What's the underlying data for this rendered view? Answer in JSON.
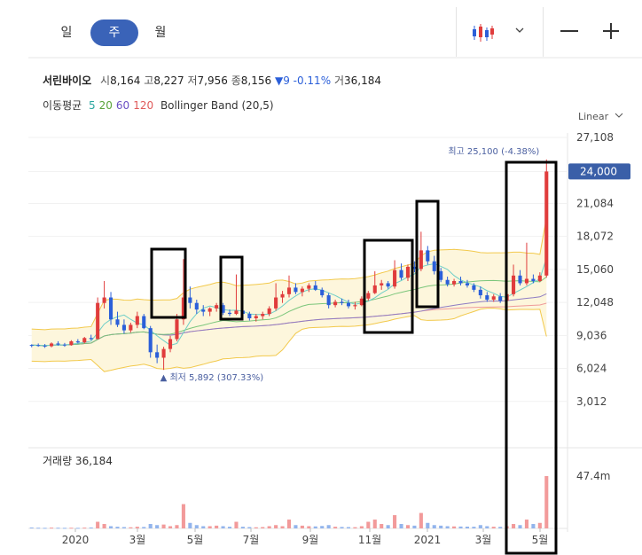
{
  "periods": [
    {
      "label": "일",
      "active": false
    },
    {
      "label": "주",
      "active": true
    },
    {
      "label": "월",
      "active": false
    }
  ],
  "toolbar": {
    "chart_type_icon": "candlestick-icon",
    "dropdown_icon": "chevron-down-icon",
    "zoom_out": "—",
    "zoom_in": "+"
  },
  "stock": {
    "name": "서린바이오",
    "open_label": "시",
    "open": "8,164",
    "high_label": "고",
    "high": "8,227",
    "low_label": "저",
    "low": "7,956",
    "close_label": "종",
    "close": "8,156",
    "change": "▼9 -0.11%",
    "volume_label": "거",
    "volume": "36,184"
  },
  "indicators": {
    "ma_label": "이동평균",
    "ma": [
      {
        "v": "5",
        "color": "#2aa6a0"
      },
      {
        "v": "20",
        "color": "#5aa33a"
      },
      {
        "v": "60",
        "color": "#6a4fc4"
      },
      {
        "v": "120",
        "color": "#e05a5a"
      }
    ],
    "bb": "Bollinger Band (20,5)"
  },
  "chart_data": {
    "type": "candlestick",
    "scale": "Linear",
    "yticks": [
      "27,108",
      "24,000",
      "21,084",
      "18,072",
      "15,060",
      "12,048",
      "9,036",
      "6,024",
      "3,012"
    ],
    "ylim": [
      0,
      27108
    ],
    "current_price": "24,000",
    "xticks": [
      "2020",
      "3월",
      "5월",
      "7월",
      "9월",
      "11월",
      "2021",
      "3월",
      "5월"
    ],
    "high_annotation": "최고 25,100 (-4.38%)",
    "low_annotation": "최저 5,892 (307.33%)",
    "candles": [
      [
        8164,
        8227,
        7956,
        8156
      ],
      [
        8156,
        8300,
        8000,
        8100
      ],
      [
        8100,
        8250,
        7900,
        8050
      ],
      [
        8050,
        8400,
        7950,
        8300
      ],
      [
        8300,
        8500,
        8100,
        8200
      ],
      [
        8200,
        8350,
        8000,
        8150
      ],
      [
        8150,
        8600,
        8100,
        8500
      ],
      [
        8500,
        8700,
        8300,
        8400
      ],
      [
        8400,
        8900,
        8300,
        8800
      ],
      [
        8800,
        9100,
        8600,
        8700
      ],
      [
        8700,
        12500,
        8700,
        12000
      ],
      [
        12000,
        14000,
        11500,
        12500
      ],
      [
        12500,
        13000,
        10000,
        10500
      ],
      [
        10500,
        11200,
        9800,
        10000
      ],
      [
        10000,
        10500,
        9200,
        9500
      ],
      [
        9500,
        10200,
        9300,
        10000
      ],
      [
        10000,
        11200,
        9700,
        10800
      ],
      [
        10800,
        11000,
        9600,
        9700
      ],
      [
        9700,
        9900,
        7000,
        7500
      ],
      [
        7500,
        8200,
        6500,
        7000
      ],
      [
        7000,
        8000,
        5892,
        7800
      ],
      [
        7800,
        9000,
        7500,
        8700
      ],
      [
        8700,
        11000,
        8500,
        10500
      ],
      [
        10500,
        16000,
        10000,
        12500
      ],
      [
        12500,
        13500,
        11500,
        12000
      ],
      [
        12000,
        12300,
        11000,
        11400
      ],
      [
        11400,
        11800,
        10800,
        11200
      ],
      [
        11200,
        11600,
        10800,
        11500
      ],
      [
        11500,
        12000,
        11200,
        11800
      ],
      [
        11800,
        12000,
        10900,
        11100
      ],
      [
        11100,
        11400,
        10800,
        11000
      ],
      [
        11000,
        14600,
        10900,
        11300
      ],
      [
        11300,
        11700,
        10800,
        11000
      ],
      [
        11000,
        11200,
        10400,
        10600
      ],
      [
        10600,
        11000,
        10300,
        10800
      ],
      [
        10800,
        11200,
        10500,
        11000
      ],
      [
        11000,
        11700,
        10800,
        11500
      ],
      [
        11500,
        13800,
        11300,
        12500
      ],
      [
        12500,
        13100,
        12000,
        12800
      ],
      [
        12800,
        14500,
        12500,
        13400
      ],
      [
        13400,
        13800,
        12800,
        13000
      ],
      [
        13000,
        13500,
        12600,
        13300
      ],
      [
        13300,
        13800,
        13000,
        13600
      ],
      [
        13600,
        14000,
        13100,
        13200
      ],
      [
        13200,
        13400,
        12500,
        12700
      ],
      [
        12700,
        12900,
        11500,
        11800
      ],
      [
        11800,
        12300,
        11600,
        12100
      ],
      [
        12100,
        12400,
        11800,
        12000
      ],
      [
        12000,
        12300,
        11500,
        11700
      ],
      [
        11700,
        12100,
        11400,
        11800
      ],
      [
        11800,
        12600,
        11700,
        12400
      ],
      [
        12400,
        13100,
        12200,
        12900
      ],
      [
        12900,
        14900,
        12800,
        13600
      ],
      [
        13600,
        14100,
        13200,
        13800
      ],
      [
        13800,
        14000,
        13300,
        13500
      ],
      [
        13500,
        15900,
        13300,
        15000
      ],
      [
        15000,
        15600,
        14100,
        14300
      ],
      [
        14300,
        15500,
        14000,
        15300
      ],
      [
        15300,
        15800,
        14800,
        15100
      ],
      [
        15100,
        18500,
        14900,
        16800
      ],
      [
        16800,
        17200,
        15500,
        15800
      ],
      [
        15800,
        16300,
        14600,
        14900
      ],
      [
        14900,
        15200,
        13900,
        14100
      ],
      [
        14100,
        14400,
        13500,
        13700
      ],
      [
        13700,
        14200,
        13500,
        14000
      ],
      [
        14000,
        14400,
        13600,
        13800
      ],
      [
        13800,
        14100,
        13400,
        13600
      ],
      [
        13600,
        13800,
        13000,
        13200
      ],
      [
        13200,
        13500,
        12400,
        12700
      ],
      [
        12700,
        13000,
        12100,
        12300
      ],
      [
        12300,
        12800,
        12100,
        12600
      ],
      [
        12600,
        12900,
        12000,
        12200
      ],
      [
        12200,
        13000,
        12100,
        12800
      ],
      [
        12800,
        15500,
        12600,
        14500
      ],
      [
        14500,
        15000,
        13600,
        13800
      ],
      [
        13800,
        17500,
        13600,
        14200
      ],
      [
        14200,
        14600,
        13800,
        14000
      ],
      [
        14000,
        14800,
        13900,
        14500
      ],
      [
        14500,
        25100,
        14300,
        24000
      ]
    ],
    "volume": {
      "label": "거래량",
      "value": "36,184",
      "tick": "47.4m",
      "max": 47.4,
      "bars": [
        0.8,
        0.6,
        0.5,
        0.7,
        0.6,
        0.5,
        0.6,
        0.5,
        0.7,
        0.8,
        6,
        4,
        2,
        1.5,
        1.2,
        1,
        1.5,
        1.3,
        4,
        3,
        3.5,
        2,
        3,
        22,
        5,
        3,
        2,
        2,
        2.5,
        2,
        1.5,
        6,
        1.5,
        1.2,
        1,
        1.2,
        2,
        3,
        2,
        8,
        3,
        2.5,
        2,
        1.8,
        2.2,
        3,
        1.5,
        1.3,
        1.2,
        1.1,
        2,
        6,
        8,
        4,
        3,
        12,
        4,
        3,
        2.5,
        14,
        5,
        3,
        2.5,
        2,
        1.8,
        1.7,
        1.6,
        1.5,
        3,
        2,
        1.5,
        1.4,
        2,
        4,
        3,
        8,
        4,
        5,
        47.4
      ]
    }
  }
}
